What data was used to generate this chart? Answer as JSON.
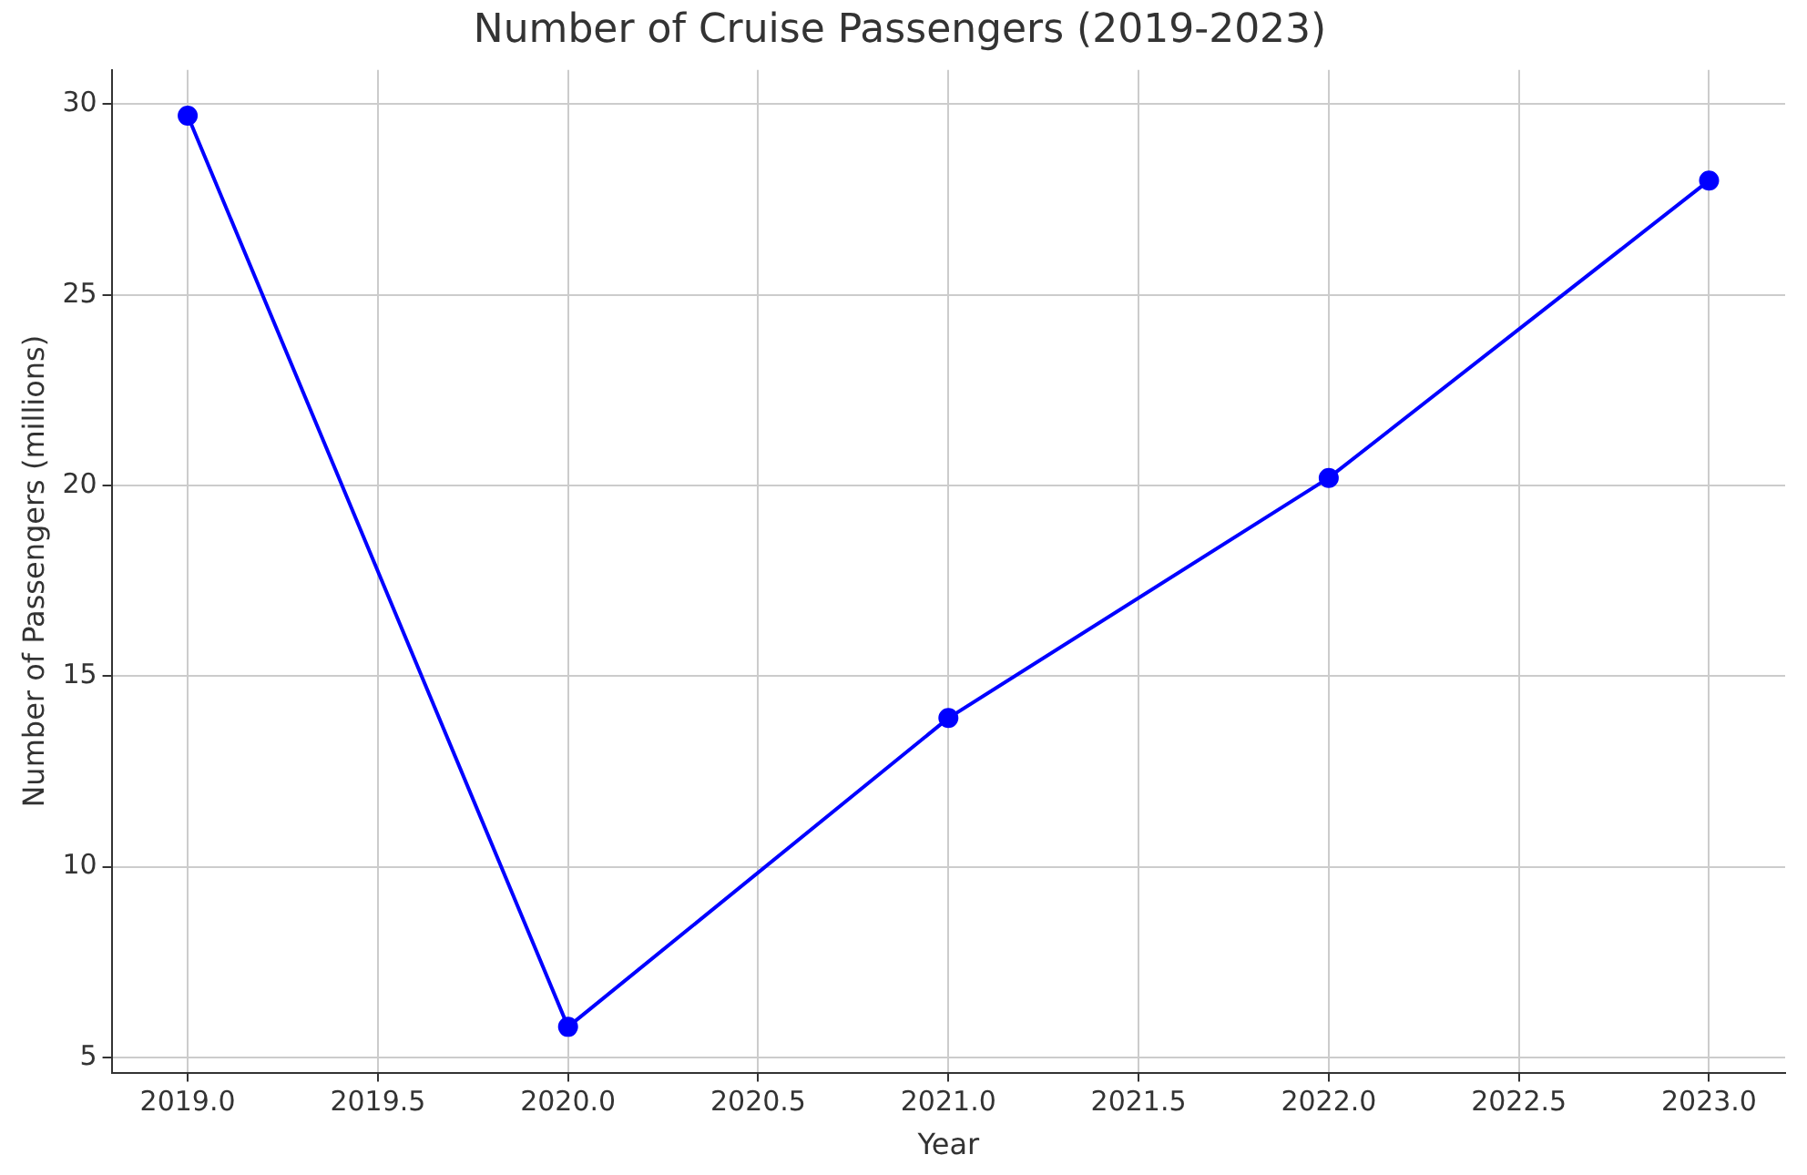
{
  "chart_data": {
    "type": "line",
    "title": "Number of Cruise Passengers (2019-2023)",
    "xlabel": "Year",
    "ylabel": "Number of Passengers (millions)",
    "x": [
      2019,
      2020,
      2021,
      2022,
      2023
    ],
    "series": [
      {
        "color": "#0000ff",
        "values": [
          29.7,
          5.8,
          13.9,
          20.2,
          28.0
        ]
      }
    ],
    "xlim": [
      2018.8,
      2023.2
    ],
    "xticks": [
      {
        "value": 2019,
        "label": "2019.0"
      },
      {
        "value": 2019.5,
        "label": "2019.5"
      },
      {
        "value": 2020,
        "label": "2020.0"
      },
      {
        "value": 2020.5,
        "label": "2020.5"
      },
      {
        "value": 2021,
        "label": "2021.0"
      },
      {
        "value": 2021.5,
        "label": "2021.5"
      },
      {
        "value": 2022,
        "label": "2022.0"
      },
      {
        "value": 2022.5,
        "label": "2022.5"
      },
      {
        "value": 2023,
        "label": "2023.0"
      }
    ],
    "ylim": [
      4.6,
      30.9
    ],
    "yticks": [
      5,
      10,
      15,
      20,
      25,
      30
    ],
    "grid": true,
    "legend": false,
    "marker": "circle",
    "line_style": "solid"
  }
}
